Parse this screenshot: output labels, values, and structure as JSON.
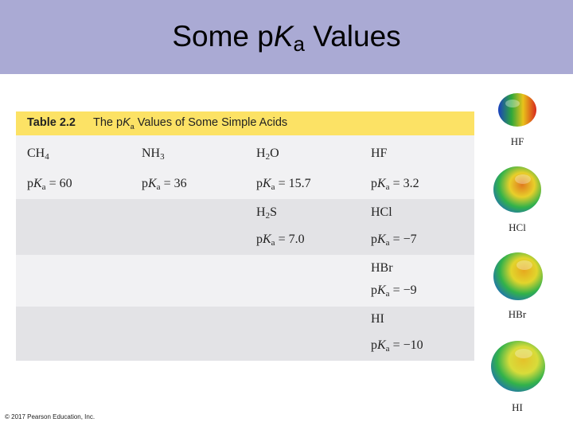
{
  "title": {
    "prefix": "Some p",
    "italic": "K",
    "subscript": "a",
    "suffix": " Values"
  },
  "table": {
    "number": "Table 2.2",
    "caption_prefix": "The p",
    "caption_italic": "K",
    "caption_sub": "a",
    "caption_suffix": " Values of Some Simple Acids",
    "cells": {
      "ch4": {
        "base": "CH",
        "sub": "4",
        "value": "= 60"
      },
      "nh3": {
        "base": "NH",
        "sub": "3",
        "value": "= 36"
      },
      "h2o": {
        "base": "H",
        "sub": "2",
        "rest": "O",
        "value": "= 15.7"
      },
      "hf": {
        "base": "HF",
        "value": "= 3.2"
      },
      "h2s": {
        "base": "H",
        "sub": "2",
        "rest": "S",
        "value": "= 7.0"
      },
      "hcl": {
        "base": "HCl",
        "value": "= −7"
      },
      "hbr": {
        "base": "HBr",
        "value": "= −9"
      },
      "hi": {
        "base": "HI",
        "value": "= −10"
      }
    },
    "pka_p": "p",
    "pka_k": "K",
    "pka_a": "a"
  },
  "models": [
    {
      "label": "HF",
      "colors": [
        "#1a3fc0",
        "#2fa83b",
        "#e8c21a",
        "#d8281e"
      ]
    },
    {
      "label": "HCl",
      "colors": [
        "#1d5fcf",
        "#32b24a",
        "#e8cf2a",
        "#e07a1e"
      ]
    },
    {
      "label": "HBr",
      "colors": [
        "#1d5fcf",
        "#32b24a",
        "#e2d52c",
        "#e6a81e"
      ]
    },
    {
      "label": "HI",
      "colors": [
        "#1d5fcf",
        "#32b24a",
        "#d8dc3a",
        "#e4c22a"
      ]
    }
  ],
  "copyright": "© 2017 Pearson Education, Inc."
}
